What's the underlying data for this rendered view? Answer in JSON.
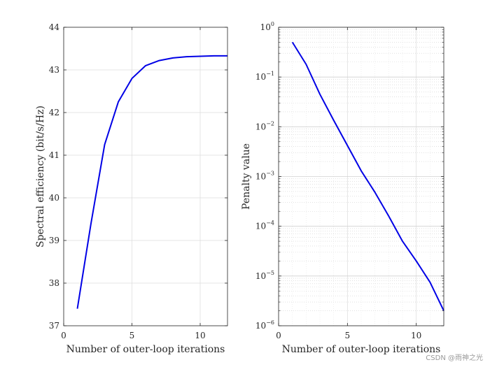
{
  "chart_data": [
    {
      "type": "line",
      "xlabel": "Number of outer-loop iterations",
      "ylabel": "Spectral efficiency (bit/s/Hz)",
      "xlim": [
        0,
        12
      ],
      "ylim": [
        37,
        44
      ],
      "xticks": [
        0,
        5,
        10
      ],
      "yticks": [
        37,
        38,
        39,
        40,
        41,
        42,
        43,
        44
      ],
      "grid": "major",
      "series": [
        {
          "color": "#0000e6",
          "x": [
            1,
            2,
            3,
            4,
            5,
            6,
            7,
            8,
            9,
            10,
            11,
            12
          ],
          "y": [
            37.4,
            39.4,
            41.25,
            42.25,
            42.8,
            43.1,
            43.22,
            43.28,
            43.31,
            43.32,
            43.33,
            43.33
          ]
        }
      ]
    },
    {
      "type": "line",
      "yscale": "log",
      "xlabel": "Number of outer-loop iterations",
      "ylabel": "Penalty value",
      "xlim": [
        0,
        12
      ],
      "ylim": [
        1e-06,
        1
      ],
      "xticks": [
        0,
        5,
        10
      ],
      "ytick_exponents": [
        -6,
        -5,
        -4,
        -3,
        -2,
        -1,
        0
      ],
      "grid": "major+minor",
      "series": [
        {
          "color": "#0000e6",
          "x": [
            1,
            2,
            3,
            4,
            5,
            6,
            7,
            8,
            9,
            10,
            11,
            12
          ],
          "y": [
            0.5,
            0.18,
            0.045,
            0.0135,
            0.0042,
            0.0013,
            0.00048,
            0.00016,
            5e-05,
            2e-05,
            7.5e-06,
            2e-06
          ]
        }
      ]
    }
  ],
  "watermark": "CSDN @雨神之光"
}
